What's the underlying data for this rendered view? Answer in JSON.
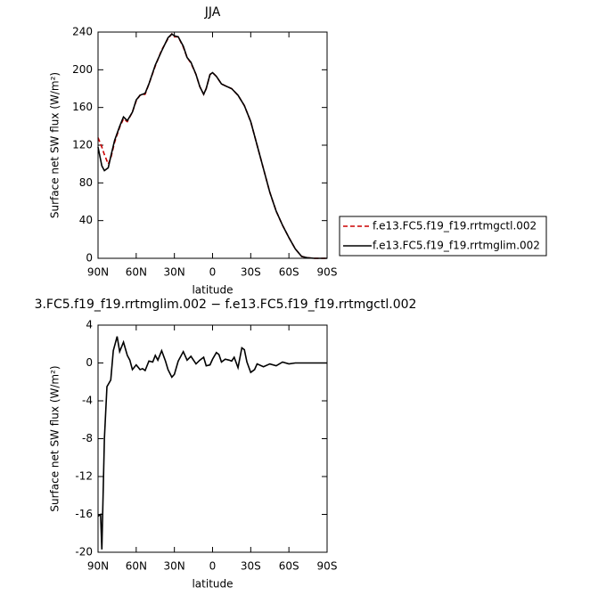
{
  "chart_data": [
    {
      "type": "line",
      "title": "JJA",
      "xlabel": "latitude",
      "ylabel": "Surface net SW flux (W/m²)",
      "x": [
        90,
        87,
        85,
        82,
        80,
        77,
        73,
        70,
        67,
        63,
        60,
        57,
        53,
        50,
        45,
        40,
        35,
        32,
        30,
        27,
        23,
        20,
        17,
        13,
        10,
        7,
        5,
        2,
        0,
        -3,
        -7,
        -10,
        -15,
        -20,
        -25,
        -30,
        -35,
        -40,
        -45,
        -50,
        -55,
        -60,
        -65,
        -70,
        -75,
        -80,
        -90
      ],
      "series": [
        {
          "name": "f.e13.FC5.f19_f19.rrtmgctl.002",
          "color": "#cc0000",
          "style": "dashed",
          "values": [
            128,
            118,
            110,
            100,
            106,
            123,
            139,
            148,
            145,
            155,
            167,
            173,
            174,
            185,
            204,
            221,
            233,
            238,
            235,
            235,
            224,
            213,
            207,
            195,
            182,
            174,
            180,
            195,
            197,
            193,
            185,
            183,
            180,
            173,
            162,
            145,
            120,
            95,
            70,
            50,
            35,
            22,
            10,
            2,
            0.5,
            0,
            0
          ]
        },
        {
          "name": "f.e13.FC5.f19_f19.rrtmglim.002",
          "color": "#000000",
          "style": "solid",
          "values": [
            118,
            98,
            93,
            96,
            108,
            125,
            140,
            150,
            146,
            155,
            168,
            173,
            175,
            185,
            205,
            220,
            234,
            238,
            236,
            235,
            225,
            213,
            208,
            195,
            182,
            174,
            180,
            195,
            197,
            193,
            185,
            183,
            180,
            173,
            162,
            145,
            120,
            95,
            70,
            50,
            35,
            22,
            10,
            2,
            0.5,
            0,
            0
          ]
        }
      ],
      "xlim": [
        90,
        -90
      ],
      "xticks": [
        {
          "value": 90,
          "label": "90N"
        },
        {
          "value": 60,
          "label": "60N"
        },
        {
          "value": 30,
          "label": "30N"
        },
        0,
        {
          "value": -30,
          "label": "30S"
        },
        {
          "value": -60,
          "label": "60S"
        },
        {
          "value": -90,
          "label": "90S"
        }
      ],
      "ylim": [
        0,
        240
      ],
      "yticks": [
        0,
        40,
        80,
        120,
        160,
        200,
        240
      ],
      "legend": "right"
    },
    {
      "type": "line",
      "title": "3.FC5.f19_f19.rrtmglim.002 − f.e13.FC5.f19_f19.rrtmgctl.002",
      "xlabel": "latitude",
      "ylabel": "Surface net SW flux (W/m²)",
      "x": [
        90,
        88,
        87,
        85,
        83,
        80,
        78,
        75,
        73,
        70,
        67,
        65,
        63,
        60,
        57,
        55,
        53,
        50,
        47,
        45,
        43,
        40,
        37,
        35,
        32,
        30,
        27,
        23,
        20,
        17,
        13,
        10,
        7,
        5,
        2,
        0,
        -3,
        -5,
        -7,
        -10,
        -13,
        -15,
        -17,
        -20,
        -23,
        -25,
        -27,
        -30,
        -33,
        -35,
        -40,
        -45,
        -50,
        -55,
        -60,
        -65,
        -70,
        -80,
        -90
      ],
      "series": [
        {
          "color": "#000000",
          "style": "solid",
          "values": [
            -16.2,
            -16,
            -19.7,
            -8,
            -2.5,
            -1.8,
            1.3,
            2.8,
            1.2,
            2.2,
            0.8,
            0.3,
            -0.7,
            -0.2,
            -0.7,
            -0.6,
            -0.8,
            0.2,
            0.1,
            0.8,
            0.3,
            1.3,
            0.2,
            -0.7,
            -1.5,
            -1.2,
            0.2,
            1.2,
            0.3,
            0.7,
            -0.1,
            0.3,
            0.6,
            -0.3,
            -0.2,
            0.4,
            1.1,
            0.9,
            0.1,
            0.4,
            0.3,
            0.2,
            0.6,
            -0.5,
            1.6,
            1.4,
            0.1,
            -1.0,
            -0.7,
            -0.1,
            -0.4,
            -0.1,
            -0.3,
            0.1,
            -0.1,
            0,
            0,
            0,
            0
          ]
        }
      ],
      "xlim": [
        90,
        -90
      ],
      "xticks": [
        {
          "value": 90,
          "label": "90N"
        },
        {
          "value": 60,
          "label": "60N"
        },
        {
          "value": 30,
          "label": "30N"
        },
        0,
        {
          "value": -30,
          "label": "30S"
        },
        {
          "value": -60,
          "label": "60S"
        },
        {
          "value": -90,
          "label": "90S"
        }
      ],
      "ylim": [
        -20,
        4
      ],
      "yticks": [
        -20,
        -16,
        -12,
        -8,
        -4,
        0,
        4
      ]
    }
  ]
}
